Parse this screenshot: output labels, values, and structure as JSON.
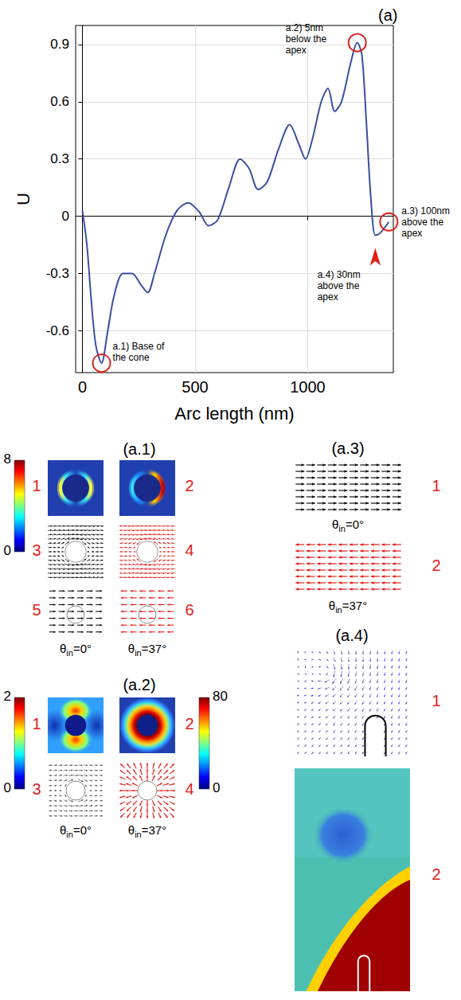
{
  "chart_data": {
    "type": "line",
    "title": "(a)",
    "x_label": "Arc length (nm)",
    "y_label": "U",
    "color": "#3a4fa3",
    "x": [
      0,
      20,
      40,
      60,
      85,
      110,
      140,
      180,
      220,
      260,
      290,
      320,
      370,
      420,
      470,
      520,
      560,
      600,
      650,
      700,
      740,
      780,
      820,
      870,
      920,
      960,
      990,
      1020,
      1060,
      1090,
      1120,
      1150,
      1190,
      1220,
      1240,
      1260,
      1280,
      1300,
      1320,
      1360
    ],
    "values": [
      0.03,
      -0.15,
      -0.45,
      -0.68,
      -0.77,
      -0.62,
      -0.42,
      -0.3,
      -0.3,
      -0.36,
      -0.4,
      -0.3,
      -0.1,
      0.03,
      0.07,
      0.02,
      -0.05,
      -0.02,
      0.15,
      0.3,
      0.25,
      0.14,
      0.18,
      0.35,
      0.48,
      0.38,
      0.3,
      0.4,
      0.6,
      0.67,
      0.55,
      0.6,
      0.8,
      0.91,
      0.85,
      0.5,
      0.1,
      -0.1,
      -0.09,
      -0.03
    ],
    "xlim": [
      -30,
      1380
    ],
    "xticks": [
      0,
      500,
      1000
    ],
    "ylim": [
      -0.82,
      1.0
    ],
    "yticks": [
      -0.6,
      -0.3,
      0,
      0.3,
      0.6,
      0.9
    ],
    "grid": true,
    "annotations": [
      {
        "text": "a.1) Base of the cone",
        "x": 85,
        "y": -0.77,
        "marker": "circle"
      },
      {
        "text": "a.2) 5nm below the apex",
        "x": 1220,
        "y": 0.91,
        "marker": "circle"
      },
      {
        "text": "a.3) 100nm above the apex",
        "x": 1360,
        "y": -0.03,
        "marker": "circle"
      },
      {
        "text": "a.4) 30nm above the apex",
        "x": 1300,
        "y": -0.1,
        "marker": "arrow"
      }
    ]
  },
  "panels": {
    "a1": {
      "title": "(a.1)",
      "colorbar": {
        "range": [
          0,
          8
        ],
        "ticks": [
          0,
          8
        ]
      },
      "labels": [
        "1",
        "2",
        "3",
        "4",
        "5",
        "6"
      ],
      "angle_labels": [
        {
          "symbol": "θ",
          "subscript": "in",
          "text": "=0°"
        },
        {
          "symbol": "θ",
          "subscript": "in",
          "text": "=37°"
        }
      ]
    },
    "a2": {
      "title": "(a.2)",
      "colorbars": [
        {
          "range": [
            0,
            2
          ],
          "ticks": [
            0,
            2
          ]
        },
        {
          "range": [
            0,
            80
          ],
          "ticks": [
            0,
            80
          ]
        }
      ],
      "labels": [
        "1",
        "2",
        "3",
        "4"
      ],
      "angle_labels": [
        {
          "symbol": "θ",
          "subscript": "in",
          "text": "=0°"
        },
        {
          "symbol": "θ",
          "subscript": "in",
          "text": "=37°"
        }
      ]
    },
    "a3": {
      "title": "(a.3)",
      "labels": [
        "1",
        "2"
      ],
      "angle_labels": [
        {
          "symbol": "θ",
          "subscript": "in",
          "text": "=0°"
        },
        {
          "symbol": "θ",
          "subscript": "in",
          "text": "=37°"
        }
      ]
    },
    "a4": {
      "title": "(a.4)",
      "labels": [
        "1",
        "2"
      ]
    }
  }
}
